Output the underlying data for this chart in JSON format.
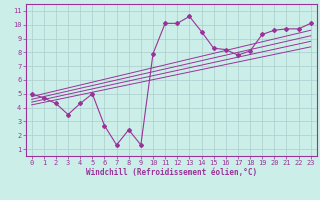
{
  "xlabel": "Windchill (Refroidissement éolien,°C)",
  "bg_color": "#cceee8",
  "grid_color": "#aacccc",
  "line_color": "#993399",
  "xlim": [
    -0.5,
    23.5
  ],
  "ylim": [
    0.5,
    11.5
  ],
  "xticks": [
    0,
    1,
    2,
    3,
    4,
    5,
    6,
    7,
    8,
    9,
    10,
    11,
    12,
    13,
    14,
    15,
    16,
    17,
    18,
    19,
    20,
    21,
    22,
    23
  ],
  "yticks": [
    1,
    2,
    3,
    4,
    5,
    6,
    7,
    8,
    9,
    10,
    11
  ],
  "scatter_x": [
    0,
    1,
    2,
    3,
    4,
    5,
    6,
    7,
    8,
    9,
    10,
    11,
    12,
    13,
    14,
    15,
    16,
    17,
    18,
    19,
    20,
    21,
    22,
    23
  ],
  "scatter_y": [
    5.0,
    4.7,
    4.3,
    3.5,
    4.3,
    5.0,
    2.7,
    1.3,
    2.4,
    1.3,
    7.9,
    10.1,
    10.1,
    10.6,
    9.5,
    8.3,
    8.2,
    7.8,
    8.1,
    9.3,
    9.6,
    9.7,
    9.7,
    10.1
  ],
  "reg_lines": [
    {
      "x": [
        0,
        23
      ],
      "y": [
        4.8,
        9.6
      ]
    },
    {
      "x": [
        0,
        23
      ],
      "y": [
        4.6,
        9.2
      ]
    },
    {
      "x": [
        0,
        23
      ],
      "y": [
        4.4,
        8.8
      ]
    },
    {
      "x": [
        0,
        23
      ],
      "y": [
        4.2,
        8.4
      ]
    }
  ],
  "xlabel_fontsize": 5.5,
  "tick_fontsize": 5
}
